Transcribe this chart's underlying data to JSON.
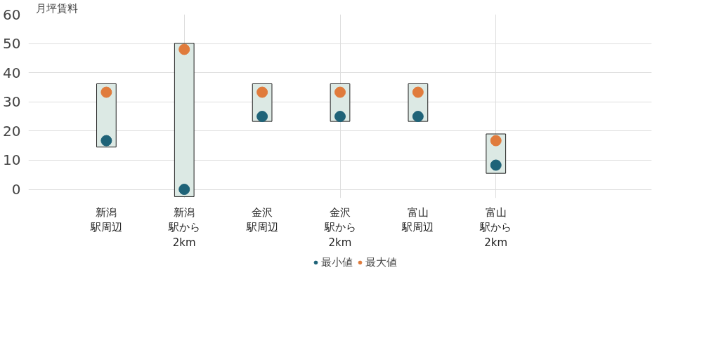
{
  "chart_data": {
    "type": "scatter",
    "ylabel": "月坪賃料",
    "categories": [
      "新潟駅周辺",
      "新潟駅から2km",
      "金沢駅周辺",
      "金沢駅から2km",
      "富山駅周辺",
      "富山駅から2km"
    ],
    "series": [
      {
        "type": "bar",
        "color": "#dce9e4",
        "base": [
          14.5,
          -2.5,
          23.3,
          23.3,
          23.3,
          5.5
        ],
        "values": [
          21.7,
          52.6,
          12.9,
          12.9,
          12.9,
          13.5
        ]
      },
      {
        "name": "最小値",
        "color": "#1f6378",
        "values": [
          16.7,
          0,
          25,
          25,
          25,
          8.3
        ]
      },
      {
        "name": "最大値",
        "color": "#e07b3c",
        "values": [
          33.3,
          48,
          33.3,
          33.3,
          33.3,
          16.7
        ]
      }
    ],
    "ylim": [
      -3,
      60
    ],
    "yticks": [
      0,
      10,
      20,
      30,
      40,
      50,
      60
    ],
    "grid": true,
    "legend": "bottom",
    "marker": "circle"
  }
}
